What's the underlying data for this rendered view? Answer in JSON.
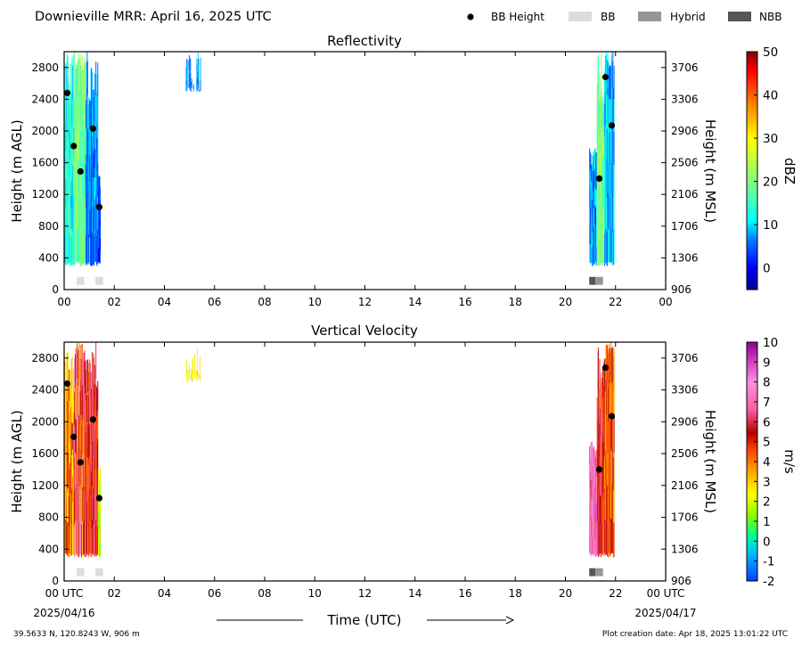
{
  "header": {
    "title": "Downieville MRR:  April 16, 2025 UTC",
    "legend": [
      {
        "label": "BB Height",
        "kind": "dot",
        "color": "#000000"
      },
      {
        "label": "BB",
        "kind": "box",
        "color": "#dcdcdc"
      },
      {
        "label": "Hybrid",
        "kind": "box",
        "color": "#969696"
      },
      {
        "label": "NBB",
        "kind": "box",
        "color": "#555555"
      }
    ]
  },
  "footer": {
    "location": "39.5633 N, 120.8243 W, 906 m",
    "created": "Plot creation date: Apr 18, 2025 13:01:22 UTC",
    "xlabel": "Time (UTC)",
    "start_date": "2025/04/16",
    "end_date": "2025/04/17"
  },
  "chart_data": [
    {
      "type": "heatmap",
      "title": "Reflectivity",
      "ylabel": "Height (m AGL)",
      "y2label": "Height (m MSL)",
      "colorbar_label": "dBZ",
      "x_ticks": [
        "00",
        "02",
        "04",
        "06",
        "08",
        "10",
        "12",
        "14",
        "16",
        "18",
        "20",
        "22",
        "00"
      ],
      "y_ticks": [
        0,
        400,
        800,
        1200,
        1600,
        2000,
        2400,
        2800
      ],
      "y2_ticks": [
        906,
        1306,
        1706,
        2106,
        2506,
        2906,
        3306,
        3706
      ],
      "xlim": [
        0,
        24
      ],
      "ylim": [
        0,
        3000
      ],
      "colorbar_ticks": [
        0,
        10,
        20,
        30,
        40,
        50
      ],
      "colorbar_range": [
        -5,
        50
      ],
      "bb_height": [
        {
          "x": 0.12,
          "y": 2480
        },
        {
          "x": 0.38,
          "y": 1810
        },
        {
          "x": 0.65,
          "y": 1490
        },
        {
          "x": 1.15,
          "y": 2030
        },
        {
          "x": 1.4,
          "y": 1040
        },
        {
          "x": 21.35,
          "y": 1400
        },
        {
          "x": 21.6,
          "y": 2680
        },
        {
          "x": 21.85,
          "y": 2070
        }
      ],
      "bb_type": [
        {
          "x0": 0.5,
          "x1": 0.8,
          "kind": "BB"
        },
        {
          "x0": 1.25,
          "x1": 1.55,
          "kind": "BB"
        },
        {
          "x0": 20.95,
          "x1": 21.2,
          "kind": "NBB"
        },
        {
          "x0": 21.2,
          "x1": 21.5,
          "kind": "Hybrid"
        }
      ],
      "echo_regions": [
        {
          "x0": 0.0,
          "x1": 0.4,
          "ybot": 300,
          "ytop": 3000,
          "vlow": 8,
          "vhigh": 18
        },
        {
          "x0": 0.4,
          "x1": 0.85,
          "ybot": 300,
          "ytop": 3000,
          "vlow": 14,
          "vhigh": 24
        },
        {
          "x0": 0.85,
          "x1": 1.35,
          "ybot": 300,
          "ytop": 3000,
          "vlow": 2,
          "vhigh": 12
        },
        {
          "x0": 1.35,
          "x1": 1.45,
          "ybot": 300,
          "ytop": 1450,
          "vlow": -2,
          "vhigh": 6
        },
        {
          "x0": 4.85,
          "x1": 5.45,
          "ybot": 2500,
          "ytop": 3000,
          "vlow": 5,
          "vhigh": 10
        },
        {
          "x0": 20.95,
          "x1": 21.25,
          "ybot": 300,
          "ytop": 1800,
          "vlow": 2,
          "vhigh": 12
        },
        {
          "x0": 21.25,
          "x1": 21.55,
          "ybot": 300,
          "ytop": 3000,
          "vlow": 14,
          "vhigh": 24
        },
        {
          "x0": 21.55,
          "x1": 21.95,
          "ybot": 300,
          "ytop": 3000,
          "vlow": 4,
          "vhigh": 14
        }
      ]
    },
    {
      "type": "heatmap",
      "title": "Vertical Velocity",
      "ylabel": "Height (m AGL)",
      "y2label": "Height (m MSL)",
      "colorbar_label": "m/s",
      "x_ticks": [
        "00 UTC",
        "02",
        "04",
        "06",
        "08",
        "10",
        "12",
        "14",
        "16",
        "18",
        "20",
        "22",
        "00 UTC"
      ],
      "y_ticks": [
        0,
        400,
        800,
        1200,
        1600,
        2000,
        2400,
        2800
      ],
      "y2_ticks": [
        906,
        1306,
        1706,
        2106,
        2506,
        2906,
        3306,
        3706
      ],
      "xlim": [
        0,
        24
      ],
      "ylim": [
        0,
        3000
      ],
      "colorbar_ticks": [
        -2,
        -1,
        0,
        1,
        2,
        3,
        4,
        5,
        6,
        7,
        8,
        9,
        10
      ],
      "colorbar_range": [
        -2,
        10
      ],
      "bb_height": [
        {
          "x": 0.12,
          "y": 2480
        },
        {
          "x": 0.38,
          "y": 1810
        },
        {
          "x": 0.65,
          "y": 1490
        },
        {
          "x": 1.15,
          "y": 2030
        },
        {
          "x": 1.4,
          "y": 1040
        },
        {
          "x": 21.35,
          "y": 1400
        },
        {
          "x": 21.6,
          "y": 2680
        },
        {
          "x": 21.85,
          "y": 2070
        }
      ],
      "bb_type": [
        {
          "x0": 0.5,
          "x1": 0.8,
          "kind": "BB"
        },
        {
          "x0": 1.25,
          "x1": 1.55,
          "kind": "BB"
        },
        {
          "x0": 20.95,
          "x1": 21.2,
          "kind": "NBB"
        },
        {
          "x0": 21.2,
          "x1": 21.5,
          "kind": "Hybrid"
        }
      ],
      "echo_regions": [
        {
          "x0": 0.0,
          "x1": 0.4,
          "ybot": 300,
          "ytop": 3000,
          "vlow": 2,
          "vhigh": 6
        },
        {
          "x0": 0.4,
          "x1": 0.85,
          "ybot": 300,
          "ytop": 3000,
          "vlow": 3,
          "vhigh": 8
        },
        {
          "x0": 0.85,
          "x1": 1.35,
          "ybot": 300,
          "ytop": 3000,
          "vlow": 4,
          "vhigh": 7
        },
        {
          "x0": 1.35,
          "x1": 1.45,
          "ybot": 300,
          "ytop": 1450,
          "vlow": 1,
          "vhigh": 3
        },
        {
          "x0": 4.85,
          "x1": 5.45,
          "ybot": 2500,
          "ytop": 3000,
          "vlow": 2,
          "vhigh": 3
        },
        {
          "x0": 20.95,
          "x1": 21.25,
          "ybot": 300,
          "ytop": 1800,
          "vlow": 6,
          "vhigh": 9
        },
        {
          "x0": 21.25,
          "x1": 21.55,
          "ybot": 300,
          "ytop": 3000,
          "vlow": 4,
          "vhigh": 7
        },
        {
          "x0": 21.55,
          "x1": 21.95,
          "ybot": 300,
          "ytop": 3000,
          "vlow": 3,
          "vhigh": 6
        }
      ]
    }
  ]
}
